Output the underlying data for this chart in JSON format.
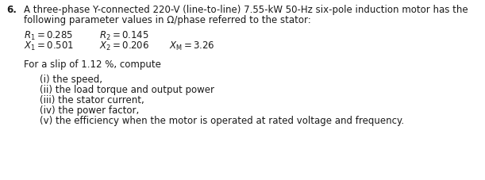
{
  "problem_number": "6.",
  "intro_line1": "A three-phase Y-connected 220-V (line-to-line) 7.55-kW 50-Hz six-pole induction motor has the",
  "intro_line2": "following parameter values in Ω/phase referred to the stator:",
  "slip_line": "For a slip of 1.12 %, compute",
  "items": [
    "(i) the speed,",
    "(ii) the load torque and output power",
    "(iii) the stator current,",
    "(iv) the power factor,",
    "(v) the efficiency when the motor is operated at rated voltage and frequency."
  ],
  "background_color": "#ffffff",
  "text_color": "#1a1a1a",
  "font_size": 8.5,
  "dpi": 100,
  "fig_width": 6.11,
  "fig_height": 2.28
}
